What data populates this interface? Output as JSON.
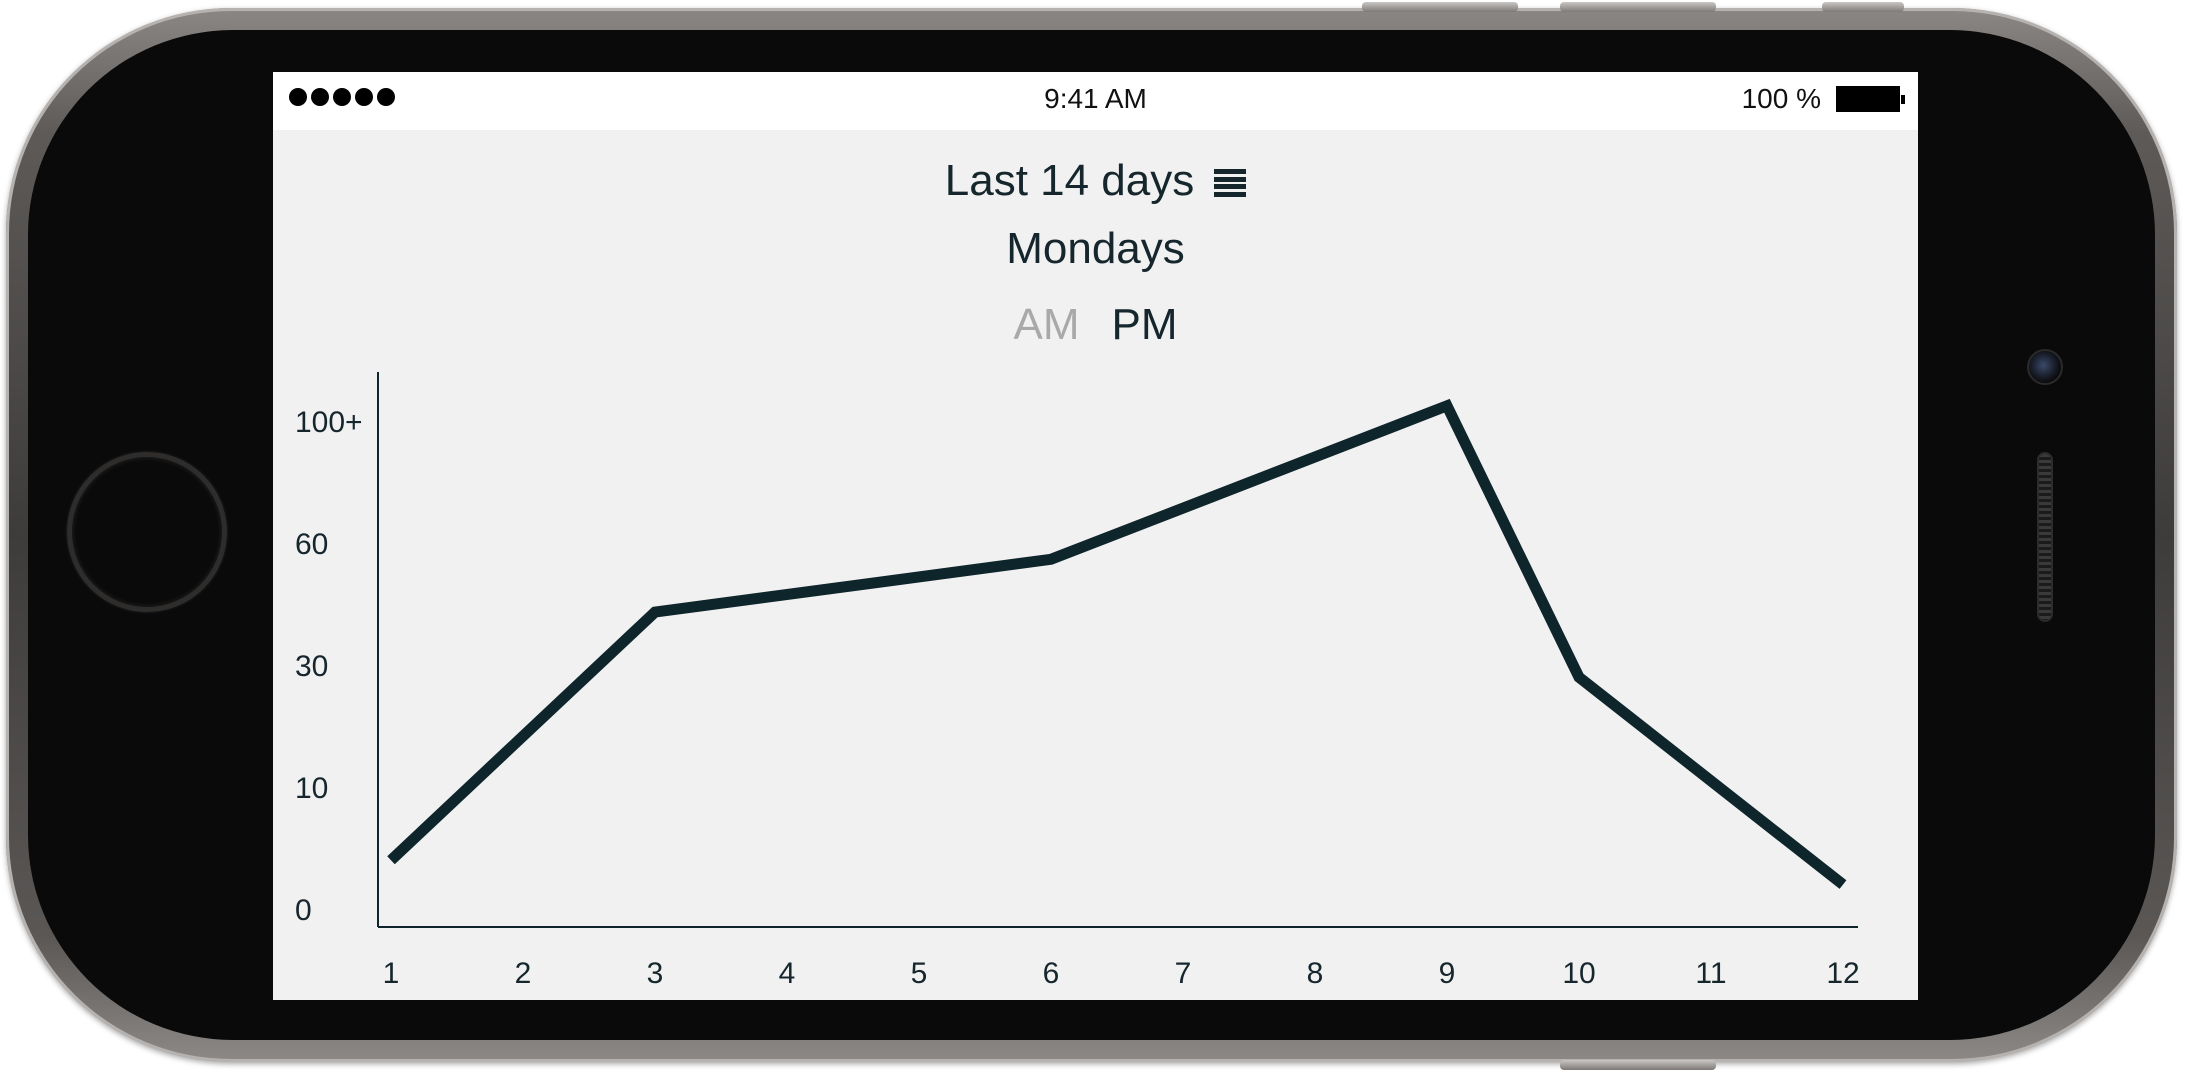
{
  "status_bar": {
    "signal_dots": 5,
    "time": "9:41 AM",
    "battery_percent": "100 %",
    "battery_level": 1.0
  },
  "header": {
    "range_label": "Last 14 days",
    "menu_icon": "hamburger-menu-icon",
    "day_label": "Mondays"
  },
  "period_toggle": {
    "am_label": "AM",
    "pm_label": "PM",
    "selected": "PM"
  },
  "colors": {
    "line": "#0e252b",
    "text": "#16262d",
    "inactive_text": "#a9a9a9",
    "background": "#f1f1f1"
  },
  "chart_data": {
    "type": "line",
    "title": "",
    "xlabel": "",
    "ylabel": "",
    "x_ticks": [
      "1",
      "2",
      "3",
      "4",
      "5",
      "6",
      "7",
      "8",
      "9",
      "10",
      "11",
      "12"
    ],
    "y_ticks": [
      "0",
      "10",
      "30",
      "60",
      "100+"
    ],
    "y_scale": "ordinal-band",
    "grid": false,
    "legend": "none",
    "series": [
      {
        "points": [
          {
            "x": 1,
            "y": 4
          },
          {
            "x": 3,
            "y": 43
          },
          {
            "x": 6,
            "y": 56
          },
          {
            "x": 9,
            "y": 105
          },
          {
            "x": 10,
            "y": 28
          },
          {
            "x": 12,
            "y": 2
          }
        ]
      }
    ]
  }
}
